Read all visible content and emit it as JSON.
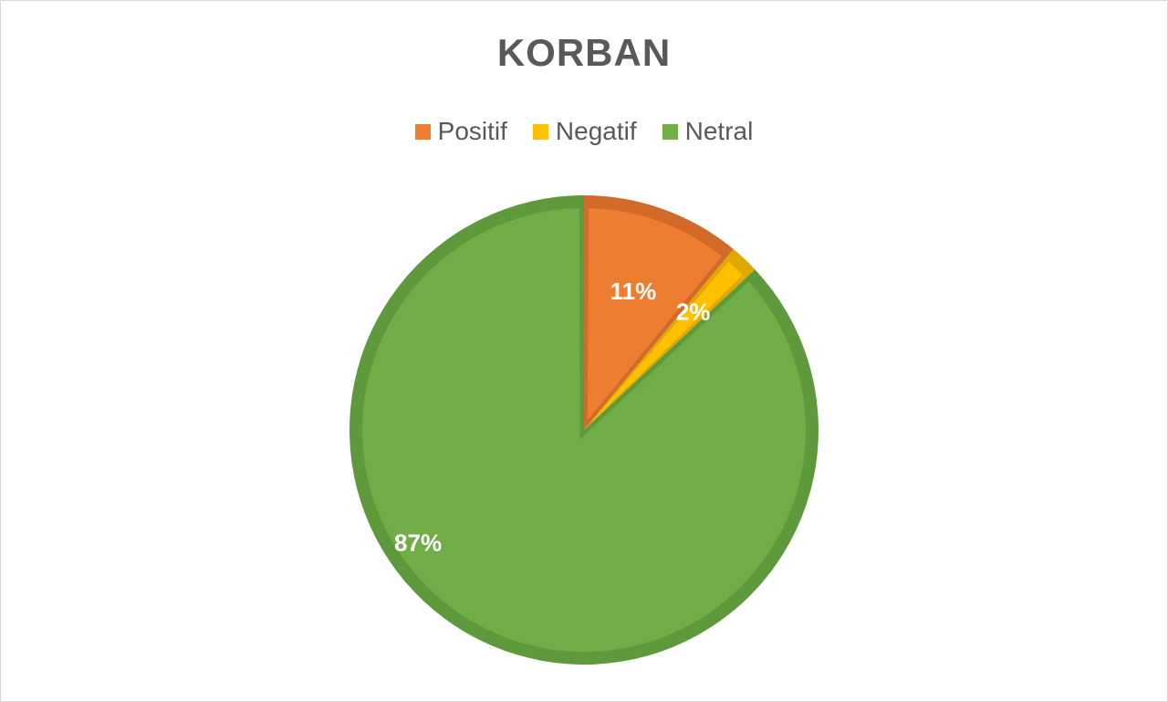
{
  "chart_data": {
    "type": "pie",
    "title": "KORBAN",
    "legend_position": "top",
    "categories": [
      "Positif",
      "Negatif",
      "Netral"
    ],
    "values": [
      11,
      2,
      87
    ],
    "data_labels": [
      "11%",
      "2%",
      "87%"
    ],
    "colors": [
      "#ED7D31",
      "#FFC000",
      "#70AD47"
    ],
    "border_colors": [
      "#D26A2A",
      "#E0A800",
      "#5E9A3C"
    ],
    "start_angle_deg": 0,
    "direction": "clockwise"
  }
}
